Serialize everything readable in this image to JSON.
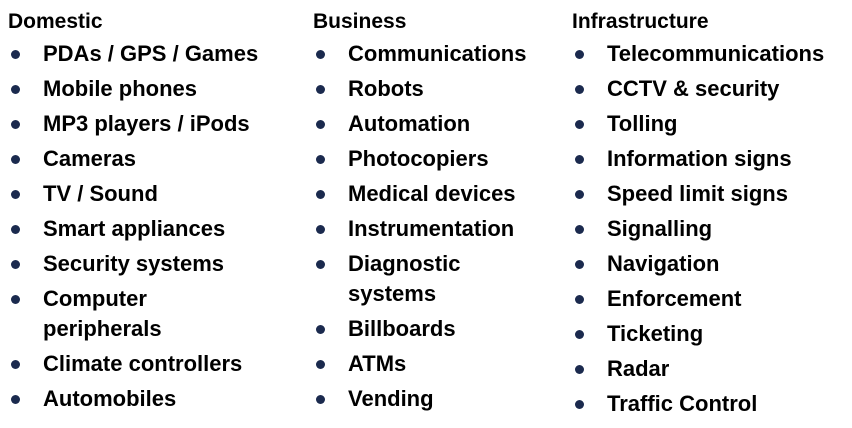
{
  "colors": {
    "bullet": "#1b2a4e",
    "text": "#000000",
    "background": "#ffffff"
  },
  "columns": [
    {
      "heading": "Domestic",
      "items": [
        "PDAs / GPS / Games",
        "Mobile phones",
        "MP3 players / iPods",
        "Cameras",
        "TV / Sound",
        "Smart appliances",
        "Security systems",
        "Computer peripherals",
        "Climate controllers",
        "Automobiles"
      ]
    },
    {
      "heading": "Business",
      "items": [
        "Communications",
        "Robots",
        "Automation",
        "Photocopiers",
        "Medical devices",
        "Instrumentation",
        "Diagnostic systems",
        "Billboards",
        "ATMs",
        "Vending"
      ]
    },
    {
      "heading": "Infrastructure",
      "items": [
        "Telecommunications",
        "CCTV & security",
        "Tolling",
        "Information signs",
        "Speed limit signs",
        "Signalling",
        "Navigation",
        "Enforcement",
        "Ticketing",
        "Radar",
        "Traffic Control"
      ]
    }
  ]
}
